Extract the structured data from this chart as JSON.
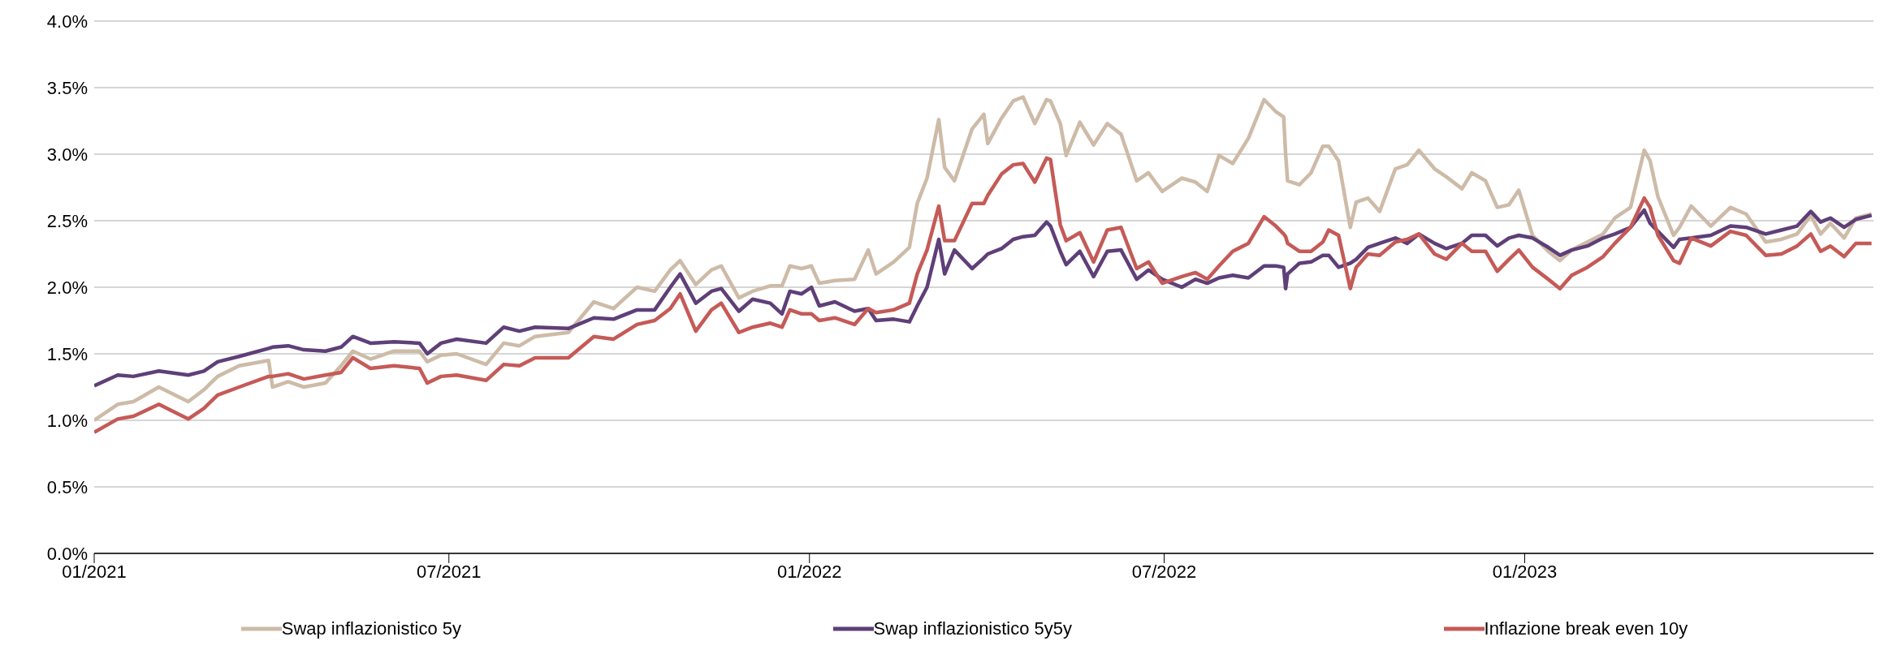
{
  "chart_data": {
    "type": "line",
    "x": [
      "2021-01-01",
      "2021-01-13",
      "2021-01-21",
      "2021-02-03",
      "2021-02-18",
      "2021-02-26",
      "2021-03-05",
      "2021-03-16",
      "2021-03-31",
      "2021-04-02",
      "2021-04-10",
      "2021-04-18",
      "2021-04-29",
      "2021-05-07",
      "2021-05-13",
      "2021-05-22",
      "2021-06-03",
      "2021-06-16",
      "2021-06-20",
      "2021-06-27",
      "2021-07-05",
      "2021-07-20",
      "2021-07-29",
      "2021-08-06",
      "2021-08-14",
      "2021-08-31",
      "2021-09-13",
      "2021-09-23",
      "2021-10-05",
      "2021-10-14",
      "2021-10-22",
      "2021-10-27",
      "2021-11-04",
      "2021-11-12",
      "2021-11-17",
      "2021-11-26",
      "2021-12-03",
      "2021-12-12",
      "2021-12-18",
      "2021-12-22",
      "2021-12-28",
      "2022-01-02",
      "2022-01-06",
      "2022-01-14",
      "2022-01-24",
      "2022-01-31",
      "2022-02-04",
      "2022-02-13",
      "2022-02-21",
      "2022-02-25",
      "2022-03-02",
      "2022-03-08",
      "2022-03-11",
      "2022-03-16",
      "2022-03-25",
      "2022-03-31",
      "2022-04-02",
      "2022-04-09",
      "2022-04-15",
      "2022-04-20",
      "2022-04-26",
      "2022-05-02",
      "2022-05-04",
      "2022-05-09",
      "2022-05-12",
      "2022-05-19",
      "2022-05-26",
      "2022-06-02",
      "2022-06-09",
      "2022-06-17",
      "2022-06-23",
      "2022-06-30",
      "2022-07-10",
      "2022-07-17",
      "2022-07-23",
      "2022-07-29",
      "2022-08-05",
      "2022-08-13",
      "2022-08-21",
      "2022-08-27",
      "2022-08-31",
      "2022-09-01",
      "2022-09-02",
      "2022-09-08",
      "2022-09-14",
      "2022-09-20",
      "2022-09-23",
      "2022-09-28",
      "2022-10-04",
      "2022-10-07",
      "2022-10-13",
      "2022-10-19",
      "2022-10-27",
      "2022-11-02",
      "2022-11-08",
      "2022-11-16",
      "2022-11-22",
      "2022-11-30",
      "2022-12-05",
      "2022-12-12",
      "2022-12-18",
      "2022-12-24",
      "2022-12-29",
      "2023-01-05",
      "2023-01-13",
      "2023-01-19",
      "2023-01-25",
      "2023-02-02",
      "2023-02-10",
      "2023-02-16",
      "2023-02-24",
      "2023-03-03",
      "2023-03-06",
      "2023-03-10",
      "2023-03-18",
      "2023-03-21",
      "2023-03-27",
      "2023-04-06",
      "2023-04-16",
      "2023-04-24",
      "2023-05-04",
      "2023-05-12",
      "2023-05-20",
      "2023-05-27",
      "2023-06-01",
      "2023-06-06",
      "2023-06-13",
      "2023-06-19",
      "2023-06-27"
    ],
    "series": [
      {
        "name": "Swap inflazionistico 5y",
        "color": "#cdbba8",
        "values": [
          1.0,
          1.12,
          1.14,
          1.25,
          1.14,
          1.23,
          1.33,
          1.41,
          1.45,
          1.25,
          1.29,
          1.25,
          1.28,
          1.41,
          1.52,
          1.46,
          1.52,
          1.52,
          1.44,
          1.49,
          1.5,
          1.42,
          1.58,
          1.56,
          1.63,
          1.66,
          1.89,
          1.84,
          2.0,
          1.97,
          2.13,
          2.2,
          2.02,
          2.13,
          2.16,
          1.92,
          1.97,
          2.01,
          2.01,
          2.16,
          2.14,
          2.16,
          2.03,
          2.05,
          2.06,
          2.28,
          2.1,
          2.19,
          2.3,
          2.63,
          2.82,
          3.26,
          2.9,
          2.8,
          3.19,
          3.3,
          3.08,
          3.27,
          3.4,
          3.43,
          3.23,
          3.41,
          3.4,
          3.23,
          2.99,
          3.24,
          3.07,
          3.23,
          3.15,
          2.8,
          2.86,
          2.72,
          2.82,
          2.79,
          2.72,
          2.99,
          2.93,
          3.12,
          3.41,
          3.32,
          3.28,
          3.0,
          2.8,
          2.77,
          2.86,
          3.06,
          3.06,
          2.95,
          2.45,
          2.64,
          2.67,
          2.57,
          2.89,
          2.92,
          3.03,
          2.89,
          2.83,
          2.74,
          2.86,
          2.8,
          2.6,
          2.62,
          2.73,
          2.39,
          2.27,
          2.2,
          2.28,
          2.34,
          2.4,
          2.52,
          2.6,
          3.03,
          2.95,
          2.68,
          2.39,
          2.45,
          2.61,
          2.46,
          2.6,
          2.55,
          2.34,
          2.36,
          2.4,
          2.54,
          2.4,
          2.48,
          2.37,
          2.52,
          2.55
        ]
      },
      {
        "name": "Swap inflazionistico 5y5y",
        "color": "#5f3f78",
        "values": [
          1.26,
          1.34,
          1.33,
          1.37,
          1.34,
          1.37,
          1.44,
          1.48,
          1.54,
          1.55,
          1.56,
          1.53,
          1.52,
          1.55,
          1.63,
          1.58,
          1.59,
          1.58,
          1.5,
          1.58,
          1.61,
          1.58,
          1.7,
          1.67,
          1.7,
          1.69,
          1.77,
          1.76,
          1.83,
          1.83,
          2.0,
          2.1,
          1.88,
          1.97,
          1.99,
          1.82,
          1.91,
          1.88,
          1.8,
          1.97,
          1.95,
          2.0,
          1.86,
          1.89,
          1.82,
          1.84,
          1.75,
          1.76,
          1.74,
          1.86,
          2.0,
          2.36,
          2.1,
          2.28,
          2.14,
          2.22,
          2.25,
          2.29,
          2.36,
          2.38,
          2.39,
          2.49,
          2.46,
          2.27,
          2.17,
          2.27,
          2.08,
          2.27,
          2.28,
          2.06,
          2.13,
          2.06,
          2.0,
          2.06,
          2.03,
          2.07,
          2.09,
          2.07,
          2.16,
          2.16,
          2.15,
          1.99,
          2.1,
          2.18,
          2.19,
          2.24,
          2.24,
          2.15,
          2.18,
          2.21,
          2.3,
          2.33,
          2.37,
          2.33,
          2.4,
          2.33,
          2.29,
          2.33,
          2.39,
          2.39,
          2.31,
          2.37,
          2.39,
          2.37,
          2.3,
          2.24,
          2.28,
          2.31,
          2.37,
          2.4,
          2.45,
          2.58,
          2.48,
          2.42,
          2.3,
          2.36,
          2.37,
          2.39,
          2.46,
          2.45,
          2.4,
          2.43,
          2.46,
          2.57,
          2.49,
          2.52,
          2.45,
          2.51,
          2.54
        ]
      },
      {
        "name": "Inflazione break even 10y",
        "color": "#c55a57",
        "values": [
          0.91,
          1.01,
          1.03,
          1.12,
          1.01,
          1.09,
          1.19,
          1.25,
          1.33,
          1.33,
          1.35,
          1.31,
          1.34,
          1.36,
          1.47,
          1.39,
          1.41,
          1.39,
          1.28,
          1.33,
          1.34,
          1.3,
          1.42,
          1.41,
          1.47,
          1.47,
          1.63,
          1.61,
          1.72,
          1.75,
          1.84,
          1.95,
          1.67,
          1.83,
          1.88,
          1.66,
          1.7,
          1.73,
          1.7,
          1.83,
          1.8,
          1.8,
          1.75,
          1.77,
          1.72,
          1.84,
          1.81,
          1.83,
          1.88,
          2.1,
          2.28,
          2.61,
          2.35,
          2.35,
          2.63,
          2.63,
          2.69,
          2.85,
          2.92,
          2.93,
          2.79,
          2.97,
          2.96,
          2.47,
          2.35,
          2.41,
          2.19,
          2.43,
          2.45,
          2.14,
          2.19,
          2.03,
          2.08,
          2.11,
          2.06,
          2.16,
          2.27,
          2.33,
          2.53,
          2.46,
          2.4,
          2.38,
          2.33,
          2.27,
          2.27,
          2.34,
          2.43,
          2.39,
          1.99,
          2.15,
          2.25,
          2.24,
          2.34,
          2.36,
          2.4,
          2.25,
          2.21,
          2.33,
          2.27,
          2.27,
          2.12,
          2.21,
          2.28,
          2.15,
          2.06,
          1.99,
          2.09,
          2.15,
          2.23,
          2.33,
          2.45,
          2.67,
          2.6,
          2.39,
          2.2,
          2.18,
          2.37,
          2.31,
          2.42,
          2.39,
          2.24,
          2.25,
          2.31,
          2.4,
          2.27,
          2.31,
          2.23,
          2.33,
          2.33
        ]
      }
    ],
    "xlim": [
      "2021-01-01",
      "2023-06-28"
    ],
    "xticks": [
      {
        "value": "2021-01-01",
        "label": "01/2021"
      },
      {
        "value": "2021-07-01",
        "label": "07/2021"
      },
      {
        "value": "2022-01-01",
        "label": "01/2022"
      },
      {
        "value": "2022-07-01",
        "label": "07/2022"
      },
      {
        "value": "2023-01-01",
        "label": "01/2023"
      }
    ],
    "ylim": [
      0,
      4
    ],
    "yticks": [
      {
        "value": 0,
        "label": "0.0%"
      },
      {
        "value": 0.5,
        "label": "0.5%"
      },
      {
        "value": 1,
        "label": "1.0%"
      },
      {
        "value": 1.5,
        "label": "1.5%"
      },
      {
        "value": 2,
        "label": "2.0%"
      },
      {
        "value": 2.5,
        "label": "2.5%"
      },
      {
        "value": 3,
        "label": "3.0%"
      },
      {
        "value": 3.5,
        "label": "3.5%"
      },
      {
        "value": 4,
        "label": "4.0%"
      }
    ],
    "grid": "y",
    "legend": "bottom",
    "marker": "none",
    "line_style": "solid"
  }
}
